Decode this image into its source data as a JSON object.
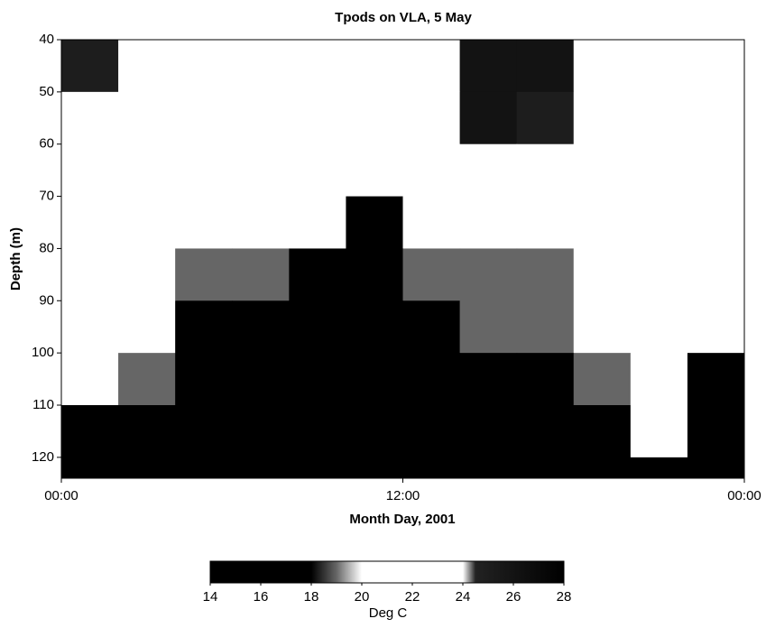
{
  "chart_data": {
    "type": "heatmap",
    "title": "Tpods on VLA, 5 May",
    "x_label": "Month Day, 2001",
    "y_label": "Depth (m)",
    "x": [
      0,
      2,
      4,
      6,
      8,
      10,
      12,
      14,
      16,
      18,
      20,
      22,
      24
    ],
    "y": [
      40,
      50,
      60,
      70,
      80,
      90,
      100,
      110,
      120,
      124
    ],
    "z": [
      [
        25,
        24,
        22,
        22,
        22,
        22,
        22,
        26,
        26,
        22,
        22,
        22
      ],
      [
        22,
        22,
        22,
        22,
        22,
        22,
        22,
        26,
        25,
        22,
        22,
        22
      ],
      [
        22,
        22,
        21,
        21,
        21,
        20,
        21,
        22,
        22,
        22,
        22,
        21
      ],
      [
        21,
        21,
        20,
        20,
        20,
        18,
        20,
        21,
        21,
        21,
        22,
        21
      ],
      [
        20,
        20,
        19,
        19,
        18,
        17,
        19,
        19,
        19,
        21,
        22,
        21
      ],
      [
        20,
        20,
        17,
        17,
        17,
        16,
        18,
        19,
        19,
        20,
        21,
        20
      ],
      [
        20,
        19,
        16,
        16,
        16,
        16,
        17,
        17,
        17,
        19,
        21,
        18
      ],
      [
        17,
        16,
        16,
        16,
        16,
        16,
        16,
        16,
        16,
        17,
        20,
        17
      ],
      [
        16,
        16,
        16,
        16,
        16,
        16,
        16,
        16,
        16,
        16,
        16,
        16
      ]
    ],
    "xlim": [
      0,
      24
    ],
    "xticks": [
      {
        "value": 0,
        "label": "00:00"
      },
      {
        "value": 12,
        "label": "12:00"
      },
      {
        "value": 24,
        "label": "00:00"
      }
    ],
    "ylim": [
      124,
      40
    ],
    "yticks": [
      40,
      50,
      60,
      70,
      80,
      90,
      100,
      110,
      120
    ],
    "colorbar": {
      "label": "Deg C",
      "lim": [
        14,
        28
      ],
      "ticks": [
        14,
        16,
        18,
        20,
        22,
        24,
        26,
        28
      ]
    },
    "colorscale": [
      [
        14,
        "#000000"
      ],
      [
        18,
        "#000000"
      ],
      [
        19,
        "#666666"
      ],
      [
        20,
        "#ffffff"
      ],
      [
        24,
        "#ffffff"
      ],
      [
        24.5,
        "#222222"
      ],
      [
        28,
        "#000000"
      ]
    ]
  }
}
